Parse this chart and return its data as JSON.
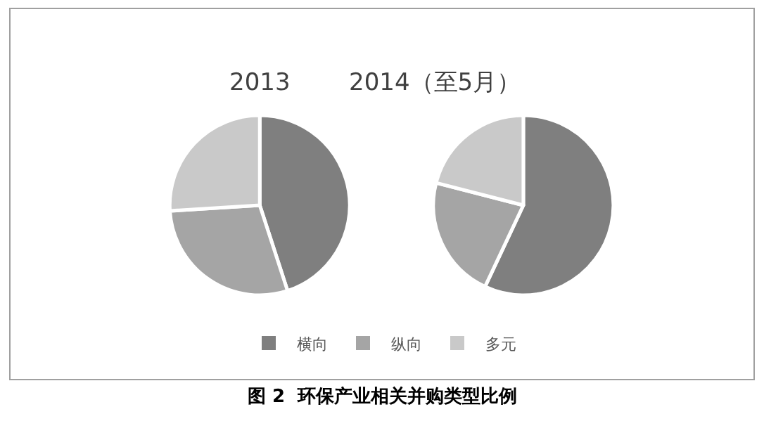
{
  "chart_data": [
    {
      "type": "pie",
      "title": "2013",
      "categories": [
        "横向",
        "纵向",
        "多元"
      ],
      "values": [
        45,
        29,
        26
      ],
      "colors": [
        "#7f7f7f",
        "#a5a5a5",
        "#c9c9c9"
      ],
      "legend": "bottom",
      "annotations": [
        "图 2  环保产业相关并购类型比例"
      ]
    },
    {
      "type": "pie",
      "title": "2014（至5月）",
      "categories": [
        null,
        null,
        null
      ],
      "values": [
        57,
        22,
        21
      ],
      "colors": [
        "#7f7f7f",
        "#a5a5a5",
        "#c9c9c9"
      ]
    }
  ]
}
